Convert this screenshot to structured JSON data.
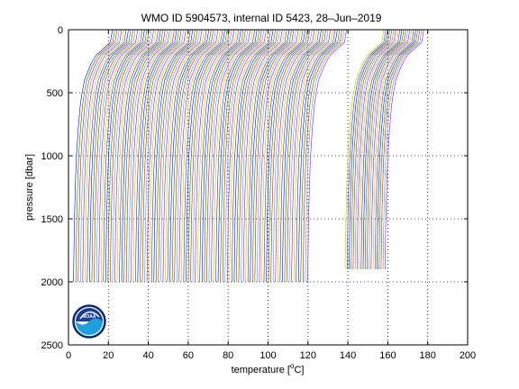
{
  "chart_data": {
    "type": "line",
    "title": "WMO ID 5904573, internal ID 5423, 28–Jun–2019",
    "xlabel": "temperature [",
    "xlabel_unit": "o",
    "xlabel_tail": "C]",
    "ylabel": "pressure [dbar]",
    "xlim": [
      0,
      200
    ],
    "ylim": [
      0,
      2500
    ],
    "y_reversed": true,
    "grid": true,
    "grid_style": "dotted",
    "xticks": [
      0,
      20,
      40,
      60,
      80,
      100,
      120,
      140,
      160,
      180,
      200
    ],
    "yticks": [
      0,
      500,
      1000,
      1500,
      2000,
      2500
    ],
    "series_colors": [
      "#0000ff",
      "#008000",
      "#ff0000",
      "#00bfbf",
      "#bf00bf",
      "#bfbf00",
      "#404040"
    ],
    "groups": [
      {
        "profile_count": 103,
        "first_offset": 0.0,
        "offset_step": 1.15,
        "max_pressure": 2000
      },
      {
        "profile_count": 21,
        "first_offset": 136.0,
        "offset_step": 1.0,
        "max_pressure": 1900
      }
    ],
    "profile_shape": {
      "pressure": [
        0,
        100,
        150,
        200,
        250,
        300,
        400,
        500,
        600,
        800,
        1000,
        1200,
        1500,
        2000
      ],
      "temperature": [
        22.0,
        21.0,
        17.5,
        14.0,
        12.0,
        10.5,
        8.0,
        6.8,
        5.9,
        4.8,
        4.0,
        3.5,
        3.0,
        2.5
      ]
    }
  },
  "logo": {
    "text": "NOAA",
    "ring_color": "#0a2a6b",
    "top_color": "#1c3f94",
    "bottom_color": "#1fa0de"
  }
}
